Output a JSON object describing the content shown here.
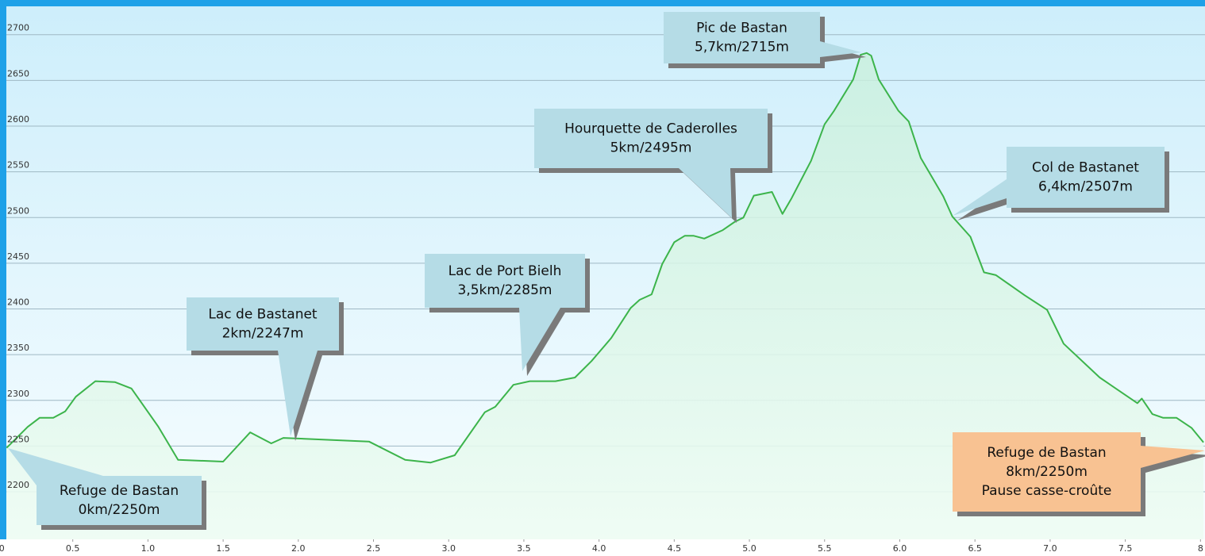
{
  "chart_data": {
    "type": "area",
    "x": [
      0.06,
      0.2,
      0.28,
      0.37,
      0.45,
      0.52,
      0.65,
      0.78,
      0.89,
      1.07,
      1.2,
      1.5,
      1.68,
      1.82,
      1.9,
      2.47,
      2.71,
      2.88,
      3.04,
      3.24,
      3.31,
      3.43,
      3.54,
      3.71,
      3.84,
      3.95,
      4.08,
      4.21,
      4.27,
      4.35,
      4.42,
      4.5,
      4.57,
      4.63,
      4.7,
      4.82,
      4.9,
      4.96,
      5.03,
      5.15,
      5.22,
      5.28,
      5.41,
      5.5,
      5.56,
      5.69,
      5.74,
      5.78,
      5.81,
      5.86,
      5.99,
      6.06,
      6.14,
      6.29,
      6.35,
      6.47,
      6.56,
      6.64,
      6.83,
      6.98,
      7.09,
      7.33,
      7.58,
      7.61,
      7.68,
      7.75,
      7.84,
      7.94,
      8.02
    ],
    "values": [
      2248,
      2271,
      2281,
      2281,
      2288,
      2304,
      2321,
      2320,
      2313,
      2271,
      2235,
      2233,
      2265,
      2253,
      2259,
      2255,
      2235,
      2232,
      2240,
      2287,
      2293,
      2317,
      2321,
      2321,
      2325,
      2343,
      2368,
      2401,
      2410,
      2416,
      2449,
      2473,
      2480,
      2480,
      2477,
      2486,
      2495,
      2500,
      2524,
      2528,
      2504,
      2521,
      2562,
      2602,
      2616,
      2651,
      2678,
      2680,
      2677,
      2651,
      2617,
      2605,
      2565,
      2523,
      2501,
      2479,
      2440,
      2437,
      2415,
      2399,
      2362,
      2325,
      2297,
      2302,
      2285,
      2281,
      2281,
      2270,
      2254
    ],
    "color": "#3cb44b",
    "xlim": [
      0.016,
      8.03
    ],
    "ylim": [
      2148,
      2731
    ],
    "xticks": [
      {
        "value": 0,
        "label": "0.0"
      },
      0.5,
      {
        "value": 1,
        "label": "1.0"
      },
      1.5,
      {
        "value": 2,
        "label": "2.0"
      },
      2.5,
      {
        "value": 3,
        "label": "3.0"
      },
      3.5,
      {
        "value": 4,
        "label": "4.0"
      },
      4.5,
      {
        "value": 5,
        "label": "5.0"
      },
      5.5,
      {
        "value": 6,
        "label": "6.0"
      },
      6.5,
      {
        "value": 7,
        "label": "7.0"
      },
      7.5,
      8
    ],
    "yticks": [
      2200,
      2250,
      2300,
      2350,
      2400,
      2450,
      2500,
      2550,
      2600,
      2650,
      2700
    ],
    "grid": true,
    "annotations": [
      {
        "lines": [
          "Refuge de Bastan",
          "0km/2250m"
        ],
        "color": "#b5dce6"
      },
      {
        "lines": [
          "Lac de Bastanet",
          "2km/2247m"
        ],
        "color": "#b5dce6"
      },
      {
        "lines": [
          "Lac de Port Bielh",
          "3,5km/2285m"
        ],
        "color": "#b5dce6"
      },
      {
        "lines": [
          "Hourquette de Caderolles",
          "5km/2495m"
        ],
        "color": "#b5dce6"
      },
      {
        "lines": [
          "Pic de Bastan",
          "5,7km/2715m"
        ],
        "color": "#b5dce6"
      },
      {
        "lines": [
          "Col de Bastanet",
          "6,4km/2507m"
        ],
        "color": "#b5dce6"
      },
      {
        "lines": [
          "Refuge de Bastan",
          "8km/2250m",
          "Pause casse-croûte"
        ],
        "color": "#f8c292"
      }
    ]
  }
}
